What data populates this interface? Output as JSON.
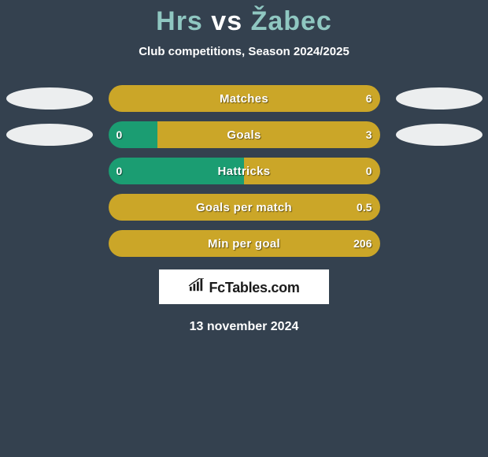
{
  "title": {
    "player1": "Hrs",
    "vs": "vs",
    "player2": "Žabec"
  },
  "subtitle": "Club competitions, Season 2024/2025",
  "colors": {
    "left_fill": "#1b9d72",
    "right_fill": "#cba628",
    "text": "#ffffff"
  },
  "rows": [
    {
      "label": "Matches",
      "left_val": "",
      "right_val": "6",
      "left_pct": 0,
      "right_pct": 100,
      "left_color": "#1b9d72",
      "right_color": "#cba628",
      "show_left_club": true,
      "show_right_club": true
    },
    {
      "label": "Goals",
      "left_val": "0",
      "right_val": "3",
      "left_pct": 18,
      "right_pct": 82,
      "left_color": "#1b9d72",
      "right_color": "#cba628",
      "show_left_club": true,
      "show_right_club": true
    },
    {
      "label": "Hattricks",
      "left_val": "0",
      "right_val": "0",
      "left_pct": 50,
      "right_pct": 50,
      "left_color": "#1b9d72",
      "right_color": "#cba628",
      "show_left_club": false,
      "show_right_club": false
    },
    {
      "label": "Goals per match",
      "left_val": "",
      "right_val": "0.5",
      "left_pct": 0,
      "right_pct": 100,
      "left_color": "#1b9d72",
      "right_color": "#cba628",
      "show_left_club": false,
      "show_right_club": false
    },
    {
      "label": "Min per goal",
      "left_val": "",
      "right_val": "206",
      "left_pct": 0,
      "right_pct": 100,
      "left_color": "#1b9d72",
      "right_color": "#cba628",
      "show_left_club": false,
      "show_right_club": false
    }
  ],
  "footer": {
    "brand": "FcTables.com",
    "date": "13 november 2024"
  }
}
